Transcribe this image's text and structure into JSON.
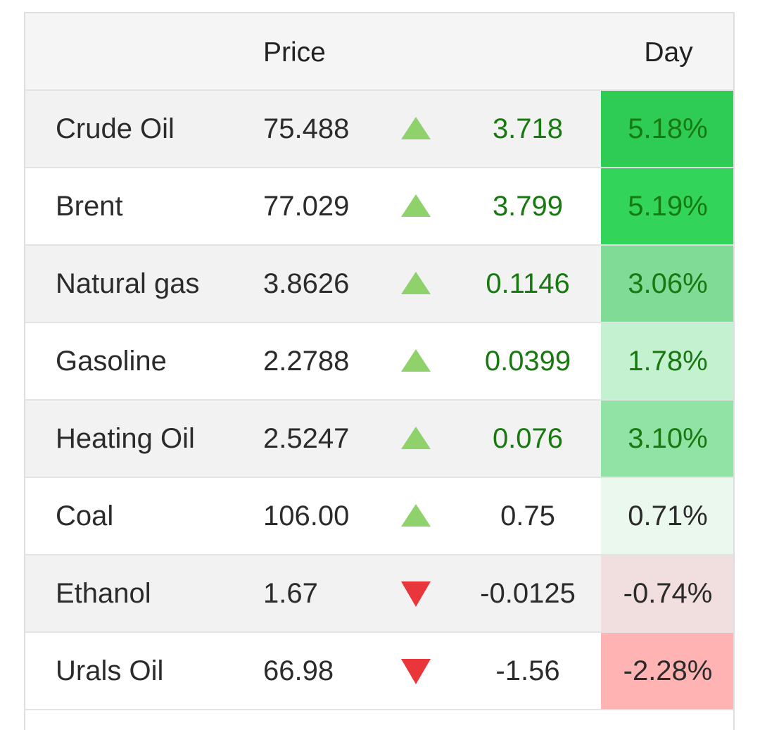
{
  "header": {
    "price_label": "Price",
    "day_label": "Day"
  },
  "rows": [
    {
      "name": "Crude Oil",
      "price": "75.488",
      "direction": "up",
      "change": "3.718",
      "pct": "5.18%",
      "pct_bg": "#2ecc55",
      "change_color": "#17790f",
      "pct_color": "#17790f"
    },
    {
      "name": "Brent",
      "price": "77.029",
      "direction": "up",
      "change": "3.799",
      "pct": "5.19%",
      "pct_bg": "#32d45a",
      "change_color": "#17790f",
      "pct_color": "#17790f"
    },
    {
      "name": "Natural gas",
      "price": "3.8626",
      "direction": "up",
      "change": "0.1146",
      "pct": "3.06%",
      "pct_bg": "#7fdb96",
      "change_color": "#17790f",
      "pct_color": "#17790f"
    },
    {
      "name": "Gasoline",
      "price": "2.2788",
      "direction": "up",
      "change": "0.0399",
      "pct": "1.78%",
      "pct_bg": "#c4f1cf",
      "change_color": "#17790f",
      "pct_color": "#17790f"
    },
    {
      "name": "Heating Oil",
      "price": "2.5247",
      "direction": "up",
      "change": "0.076",
      "pct": "3.10%",
      "pct_bg": "#91e2a5",
      "change_color": "#17790f",
      "pct_color": "#17790f"
    },
    {
      "name": "Coal",
      "price": "106.00",
      "direction": "up",
      "change": "0.75",
      "pct": "0.71%",
      "pct_bg": "#ebf8ee",
      "change_color": "#2b2b2b",
      "pct_color": "#2b2b2b"
    },
    {
      "name": "Ethanol",
      "price": "1.67",
      "direction": "down",
      "change": "-0.0125",
      "pct": "-0.74%",
      "pct_bg": "#f1dfe0",
      "change_color": "#2b2b2b",
      "pct_color": "#2b2b2b"
    },
    {
      "name": "Urals Oil",
      "price": "66.98",
      "direction": "down",
      "change": "-1.56",
      "pct": "-2.28%",
      "pct_bg": "#ffb3b3",
      "change_color": "#2b2b2b",
      "pct_color": "#2b2b2b"
    }
  ],
  "icons": {
    "up": "triangle-up-icon",
    "down": "triangle-down-icon"
  }
}
